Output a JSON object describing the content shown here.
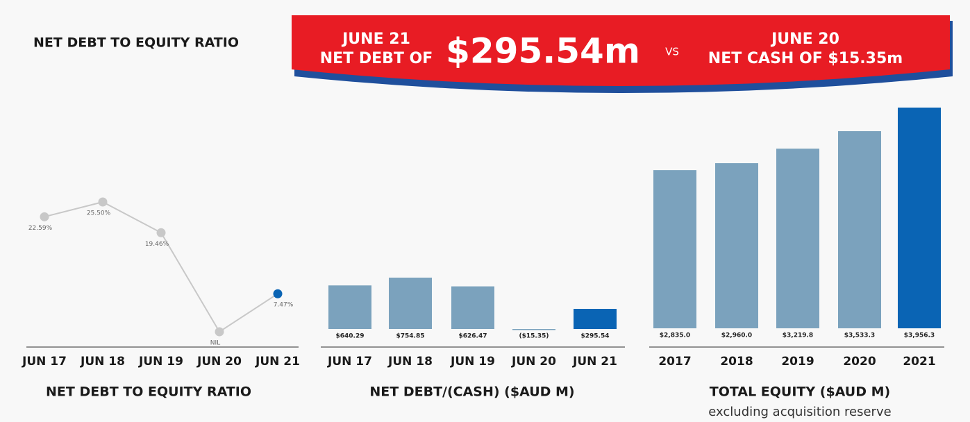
{
  "header": {
    "title": "NET DEBT TO EQUITY RATIO"
  },
  "banner": {
    "left_line1": "JUNE 21",
    "left_line2": "NET DEBT OF",
    "headline": "$295.54m",
    "vs": "VS",
    "right_line1": "JUNE 20",
    "right_line2": "NET CASH OF $15.35m"
  },
  "chart_data": [
    {
      "type": "line",
      "title": "NET DEBT TO EQUITY RATIO",
      "categories": [
        "JUN 17",
        "JUN 18",
        "JUN 19",
        "JUN 20",
        "JUN 21"
      ],
      "values": [
        22.59,
        25.5,
        19.46,
        0,
        7.47
      ],
      "value_labels": [
        "22.59%",
        "25.50%",
        "19.46%",
        "NIL",
        "7.47%"
      ],
      "colors": [
        "#c8c8c8",
        "#c8c8c8",
        "#c8c8c8",
        "#c8c8c8",
        "#0a64b4"
      ],
      "line_color": "#c8c8c8"
    },
    {
      "type": "bar",
      "title": "NET DEBT/(CASH) ($AUD M)",
      "categories": [
        "JUN 17",
        "JUN 18",
        "JUN 19",
        "JUN 20",
        "JUN 21"
      ],
      "values": [
        640.29,
        754.85,
        626.47,
        -15.35,
        295.54
      ],
      "value_labels": [
        "$640.29",
        "$754.85",
        "$626.47",
        "($15.35)",
        "$295.54"
      ],
      "colors": [
        "#7ba2bd",
        "#7ba2bd",
        "#7ba2bd",
        "#7ba2bd",
        "#0a64b4"
      ]
    },
    {
      "type": "bar",
      "title": "TOTAL EQUITY ($AUD M)",
      "subtitle": "excluding acquisition reserve",
      "categories": [
        "2017",
        "2018",
        "2019",
        "2020",
        "2021"
      ],
      "values": [
        2835.0,
        2960.0,
        3219.8,
        3533.3,
        3956.3
      ],
      "value_labels": [
        "$2,835.0",
        "$2,960.0",
        "$3,219.8",
        "$3,533.3",
        "$3,956.3"
      ],
      "colors": [
        "#7ba2bd",
        "#7ba2bd",
        "#7ba2bd",
        "#7ba2bd",
        "#0a64b4"
      ]
    }
  ]
}
